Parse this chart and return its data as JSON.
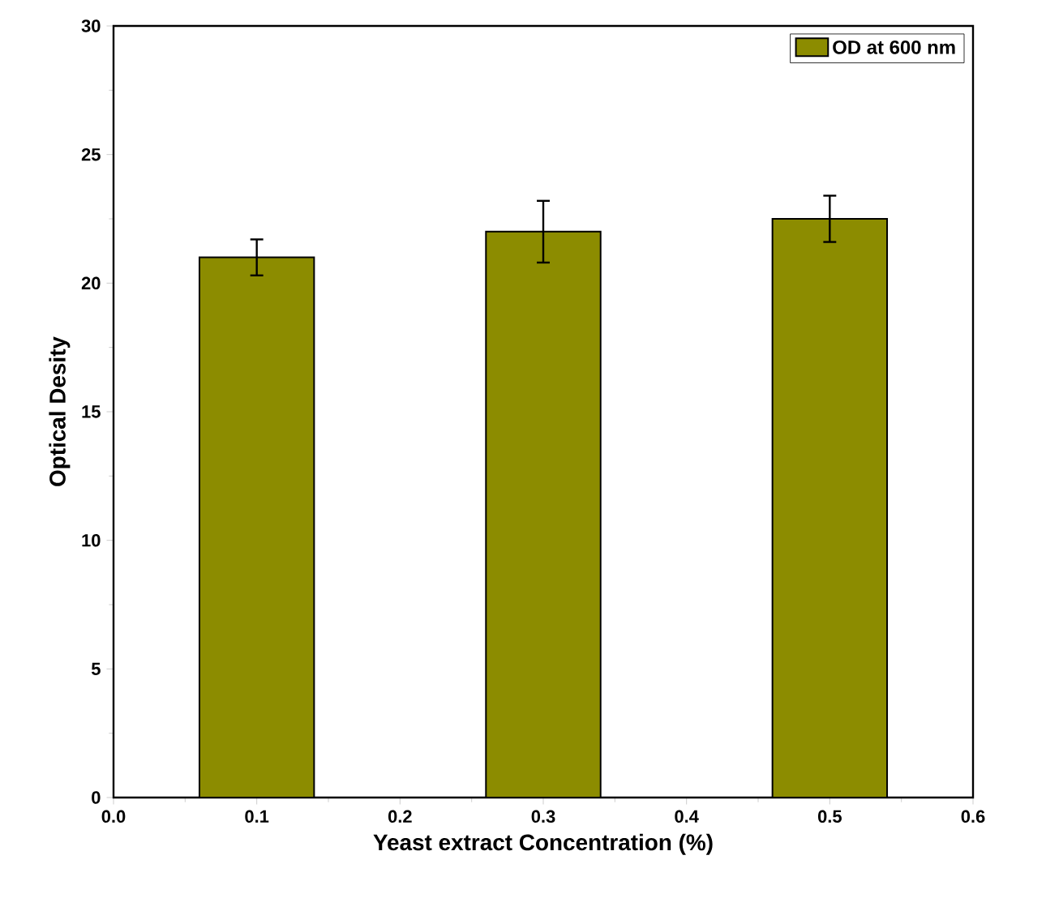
{
  "chart_data": {
    "type": "bar",
    "xlabel": "Yeast extract Concentration (%)",
    "ylabel": "Optical Desity",
    "x": [
      0.1,
      0.3,
      0.5
    ],
    "series": [
      {
        "name": "OD at 600 nm",
        "color": "#8c8c00",
        "values": [
          21,
          22,
          22.5
        ],
        "errors": [
          0.7,
          1.2,
          0.9
        ]
      }
    ],
    "xlim": [
      0.0,
      0.6
    ],
    "xticks": [
      {
        "value": 0.0,
        "label": "0.0"
      },
      0.1,
      0.2,
      0.3,
      0.4,
      0.5,
      0.6
    ],
    "ylim": [
      0,
      30
    ],
    "yticks": [
      0,
      5,
      10,
      15,
      20,
      25,
      30
    ],
    "legend": "top right"
  }
}
